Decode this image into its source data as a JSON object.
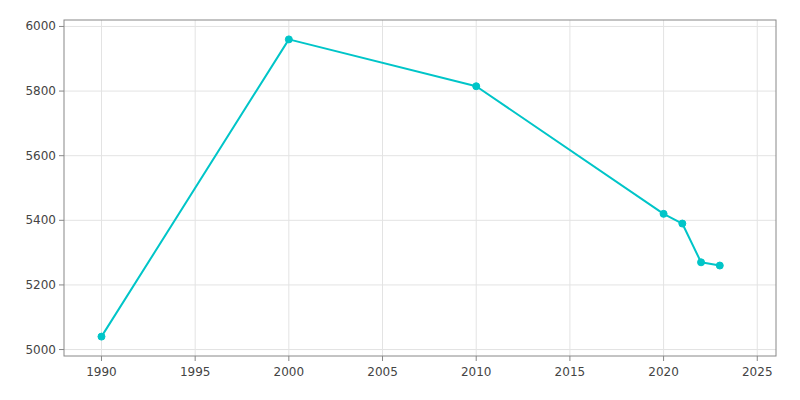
{
  "chart_data": {
    "type": "line",
    "x": [
      1990,
      2000,
      2010,
      2020,
      2021,
      2022,
      2023
    ],
    "values": [
      5040,
      5960,
      5815,
      5420,
      5390,
      5270,
      5260
    ],
    "color": "#00C5C8",
    "marker": "circle",
    "xlim": [
      1988,
      2026
    ],
    "ylim": [
      4980,
      6020
    ],
    "xticks": [
      1990,
      1995,
      2000,
      2005,
      2010,
      2015,
      2020,
      2025
    ],
    "yticks": [
      5000,
      5200,
      5400,
      5600,
      5800,
      6000
    ],
    "grid": true
  }
}
